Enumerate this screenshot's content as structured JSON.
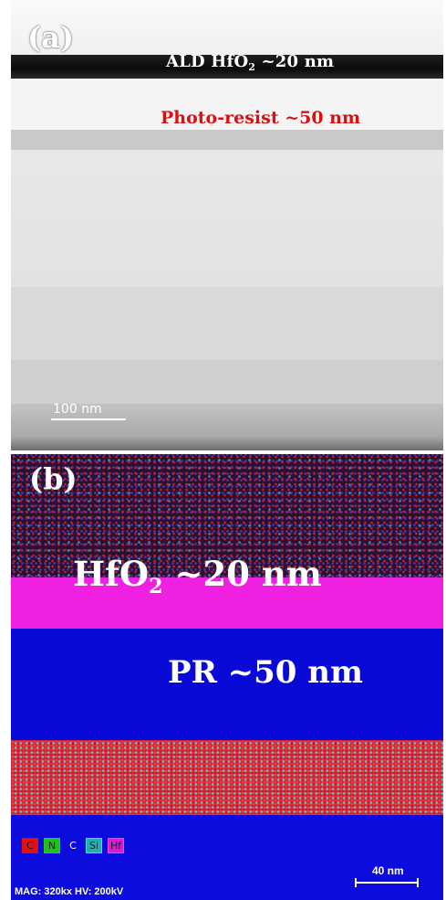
{
  "panel_a": {
    "label": "(a)",
    "hfo2_text": "ALD HfO",
    "hfo2_sub": "2",
    "hfo2_suffix": " ~20 nm",
    "pr_text": "Photo-resist ~50 nm",
    "scale_bar": "100 nm"
  },
  "panel_b": {
    "label": "(b)",
    "hfo2_text": "HfO",
    "hfo2_sub": "2",
    "hfo2_suffix": " ~20 nm",
    "pr_text": "PR  ~50 nm",
    "legend": [
      {
        "label": "C",
        "color": "#e01010",
        "bg": "#e01010"
      },
      {
        "label": "N",
        "color": "#20d020",
        "bg": "#20c020"
      },
      {
        "label": "C",
        "color": "#ffffff",
        "bg": "transparent"
      },
      {
        "label": "Si",
        "color": "#40e0e0",
        "bg": "#20b0b0"
      },
      {
        "label": "Hf",
        "color": "#ff40ff",
        "bg": "#d020d0"
      }
    ],
    "scale_bar": "40 nm",
    "mag_info": "MAG: 320kx  HV: 200kV"
  }
}
